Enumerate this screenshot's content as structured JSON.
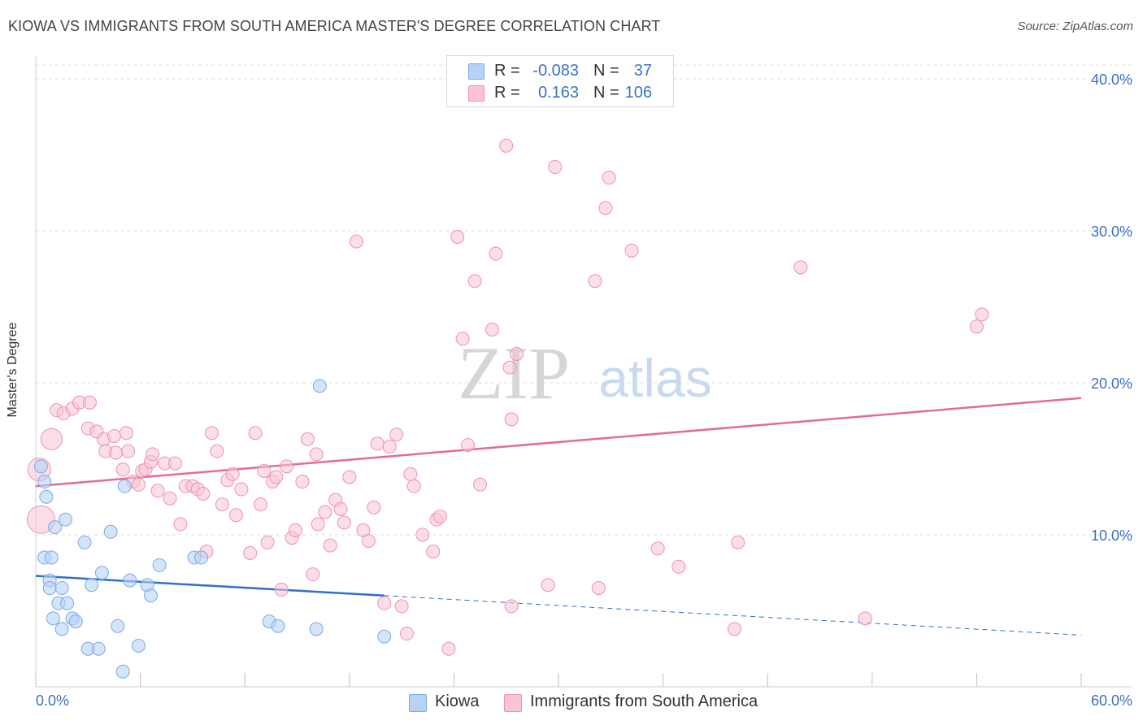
{
  "header": {
    "title": "KIOWA VS IMMIGRANTS FROM SOUTH AMERICA MASTER'S DEGREE CORRELATION CHART",
    "source": "Source: ZipAtlas.com"
  },
  "watermark": {
    "zip": "ZIP",
    "atlas": "atlas"
  },
  "legend": {
    "rows": [
      {
        "r_label": "R =",
        "r_value": "-0.083",
        "n_label": "N =",
        "n_value": "37",
        "color": "#7aaae8"
      },
      {
        "r_label": "R =",
        "r_value": "0.163",
        "n_label": "N =",
        "n_value": "106",
        "color": "#f28fb0"
      }
    ]
  },
  "chart_data": {
    "type": "scatter",
    "title": "KIOWA VS IMMIGRANTS FROM SOUTH AMERICA MASTER'S DEGREE CORRELATION CHART",
    "xlabel": "",
    "ylabel": "Master's Degree",
    "xlim": [
      0,
      60
    ],
    "ylim": [
      0,
      40
    ],
    "x_tick_labels": [
      "0.0%",
      "60.0%"
    ],
    "y_ticks": [
      10,
      20,
      30,
      40
    ],
    "y_tick_labels": [
      "10.0%",
      "20.0%",
      "30.0%",
      "40.0%"
    ],
    "grid": true,
    "series": [
      {
        "name": "Kiowa",
        "color": "#7aaae8",
        "fill": "#b8d2f5",
        "points": [
          [
            0.3,
            14.5
          ],
          [
            0.5,
            13.5
          ],
          [
            0.6,
            12.5
          ],
          [
            1.1,
            10.5
          ],
          [
            1.7,
            11.0
          ],
          [
            0.5,
            8.5
          ],
          [
            0.9,
            8.5
          ],
          [
            0.8,
            7.0
          ],
          [
            0.8,
            6.5
          ],
          [
            1.5,
            6.5
          ],
          [
            1.3,
            5.5
          ],
          [
            1.8,
            5.5
          ],
          [
            1.0,
            4.5
          ],
          [
            2.1,
            4.5
          ],
          [
            2.3,
            4.3
          ],
          [
            1.5,
            3.8
          ],
          [
            2.8,
            9.5
          ],
          [
            4.3,
            10.2
          ],
          [
            3.8,
            7.5
          ],
          [
            3.2,
            6.7
          ],
          [
            3.0,
            2.5
          ],
          [
            3.6,
            2.5
          ],
          [
            4.7,
            4.0
          ],
          [
            5.0,
            1.0
          ],
          [
            5.9,
            2.7
          ],
          [
            5.4,
            7.0
          ],
          [
            5.1,
            13.2
          ],
          [
            6.4,
            6.7
          ],
          [
            6.6,
            6.0
          ],
          [
            7.1,
            8.0
          ],
          [
            9.1,
            8.5
          ],
          [
            13.4,
            4.3
          ],
          [
            13.9,
            4.0
          ],
          [
            16.1,
            3.8
          ],
          [
            20.0,
            3.3
          ],
          [
            16.3,
            19.8
          ],
          [
            9.5,
            8.5
          ]
        ],
        "trend": {
          "x_solid": [
            0,
            20
          ],
          "y_solid": [
            7.3,
            6.0
          ],
          "x_dash": [
            20,
            60
          ],
          "y_dash": [
            6.0,
            3.4
          ]
        }
      },
      {
        "name": "Immigrants from South America",
        "color": "#f28fb0",
        "fill": "#f8c4d6",
        "points": [
          [
            0.2,
            14.3
          ],
          [
            0.3,
            11.0
          ],
          [
            0.9,
            16.3
          ],
          [
            1.2,
            18.2
          ],
          [
            1.6,
            18.0
          ],
          [
            2.1,
            18.3
          ],
          [
            2.5,
            18.7
          ],
          [
            3.0,
            17.0
          ],
          [
            3.1,
            18.7
          ],
          [
            3.5,
            16.8
          ],
          [
            3.9,
            16.3
          ],
          [
            4.0,
            15.5
          ],
          [
            4.5,
            16.5
          ],
          [
            4.6,
            15.4
          ],
          [
            5.0,
            14.3
          ],
          [
            5.2,
            16.7
          ],
          [
            5.3,
            15.5
          ],
          [
            5.6,
            13.5
          ],
          [
            5.9,
            13.3
          ],
          [
            6.1,
            14.2
          ],
          [
            6.3,
            14.3
          ],
          [
            6.6,
            14.8
          ],
          [
            6.7,
            15.3
          ],
          [
            7.0,
            12.9
          ],
          [
            7.4,
            14.7
          ],
          [
            7.7,
            12.4
          ],
          [
            8.0,
            14.7
          ],
          [
            8.3,
            10.7
          ],
          [
            8.6,
            13.2
          ],
          [
            9.0,
            13.2
          ],
          [
            9.3,
            13.0
          ],
          [
            9.6,
            12.7
          ],
          [
            9.8,
            8.9
          ],
          [
            10.1,
            16.7
          ],
          [
            10.4,
            15.5
          ],
          [
            10.7,
            12.0
          ],
          [
            11.0,
            13.6
          ],
          [
            11.3,
            14.0
          ],
          [
            11.5,
            11.3
          ],
          [
            11.8,
            13.0
          ],
          [
            12.3,
            8.8
          ],
          [
            12.6,
            16.7
          ],
          [
            12.9,
            12.0
          ],
          [
            13.1,
            14.2
          ],
          [
            13.3,
            9.5
          ],
          [
            13.6,
            13.5
          ],
          [
            13.8,
            13.8
          ],
          [
            14.1,
            6.4
          ],
          [
            14.4,
            14.5
          ],
          [
            14.7,
            9.8
          ],
          [
            14.9,
            10.3
          ],
          [
            15.3,
            13.5
          ],
          [
            15.6,
            16.3
          ],
          [
            15.9,
            7.4
          ],
          [
            16.1,
            15.3
          ],
          [
            16.2,
            10.7
          ],
          [
            16.6,
            11.5
          ],
          [
            16.9,
            9.3
          ],
          [
            17.2,
            12.3
          ],
          [
            17.5,
            11.7
          ],
          [
            17.7,
            10.8
          ],
          [
            18.0,
            13.8
          ],
          [
            18.4,
            29.3
          ],
          [
            18.8,
            10.3
          ],
          [
            19.1,
            9.6
          ],
          [
            19.4,
            11.8
          ],
          [
            19.6,
            16.0
          ],
          [
            20.0,
            5.5
          ],
          [
            20.3,
            15.8
          ],
          [
            20.7,
            16.6
          ],
          [
            21.0,
            5.3
          ],
          [
            21.3,
            3.5
          ],
          [
            21.5,
            14.0
          ],
          [
            21.7,
            13.2
          ],
          [
            22.2,
            10.0
          ],
          [
            22.8,
            8.9
          ],
          [
            23.0,
            11.0
          ],
          [
            23.2,
            11.2
          ],
          [
            23.7,
            2.5
          ],
          [
            24.2,
            29.6
          ],
          [
            24.5,
            22.9
          ],
          [
            24.8,
            15.9
          ],
          [
            25.2,
            26.7
          ],
          [
            25.5,
            13.3
          ],
          [
            26.2,
            23.5
          ],
          [
            26.4,
            28.5
          ],
          [
            27.0,
            35.6
          ],
          [
            27.2,
            21.0
          ],
          [
            27.3,
            17.6
          ],
          [
            27.6,
            21.9
          ],
          [
            27.3,
            5.3
          ],
          [
            29.4,
            6.7
          ],
          [
            29.8,
            34.2
          ],
          [
            32.1,
            26.7
          ],
          [
            32.7,
            31.5
          ],
          [
            32.9,
            33.5
          ],
          [
            34.2,
            28.7
          ],
          [
            32.3,
            6.5
          ],
          [
            35.7,
            9.1
          ],
          [
            36.9,
            7.9
          ],
          [
            40.1,
            3.8
          ],
          [
            40.3,
            9.5
          ],
          [
            43.9,
            27.6
          ],
          [
            47.6,
            4.5
          ],
          [
            54.0,
            23.7
          ],
          [
            54.3,
            24.5
          ]
        ],
        "trend": {
          "x": [
            0,
            60
          ],
          "y": [
            13.2,
            19.0
          ]
        }
      }
    ],
    "legend": {
      "entries": [
        "Kiowa",
        "Immigrants from South America"
      ],
      "placement": "top-center and bottom-center"
    }
  },
  "bottom_legend": {
    "items": [
      {
        "label": "Kiowa",
        "color": "#b8d2f5",
        "border": "#7aaae8"
      },
      {
        "label": "Immigrants from South America",
        "color": "#f8c4d6",
        "border": "#f28fb0"
      }
    ]
  }
}
